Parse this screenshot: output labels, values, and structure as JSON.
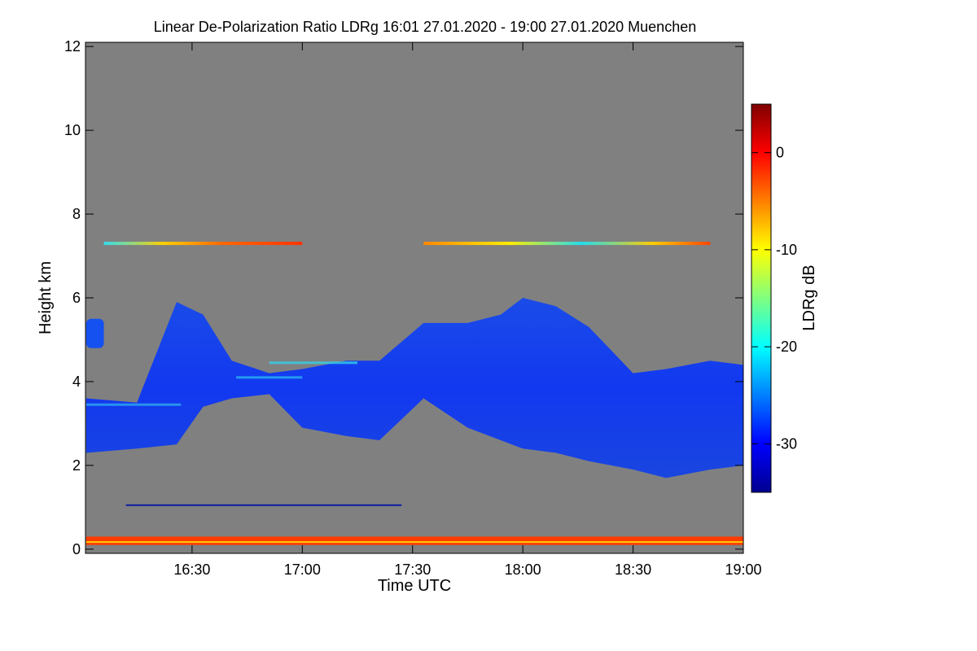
{
  "chart_data": {
    "type": "heatmap",
    "title": "Linear De-Polarization Ratio LDRg   16:01 27.01.2020 - 19:00 27.01.2020 Muenchen",
    "xlabel": "Time UTC",
    "ylabel": "Height km",
    "x_range_hours": [
      16.0167,
      19.0
    ],
    "x_ticks": [
      {
        "label": "16:30",
        "hour": 16.5
      },
      {
        "label": "17:00",
        "hour": 17.0
      },
      {
        "label": "17:30",
        "hour": 17.5
      },
      {
        "label": "18:00",
        "hour": 18.0
      },
      {
        "label": "18:30",
        "hour": 18.5
      },
      {
        "label": "19:00",
        "hour": 19.0
      }
    ],
    "ylim": [
      -0.1,
      12.1
    ],
    "y_ticks": [
      {
        "label": "0",
        "value": 0
      },
      {
        "label": "2",
        "value": 2
      },
      {
        "label": "4",
        "value": 4
      },
      {
        "label": "6",
        "value": 6
      },
      {
        "label": "8",
        "value": 8
      },
      {
        "label": "10",
        "value": 10
      },
      {
        "label": "12",
        "value": 12
      }
    ],
    "colorbar": {
      "label": "LDRg dB",
      "range": [
        -35,
        5
      ],
      "ticks": [
        {
          "label": "0",
          "value": 0
        },
        {
          "label": "-10",
          "value": -10
        },
        {
          "label": "-20",
          "value": -20
        },
        {
          "label": "-30",
          "value": -30
        }
      ]
    },
    "background_color": "#808080",
    "features": [
      {
        "name": "main cloud layer",
        "approx_ldr_db": -30,
        "outline_hours": [
          16.02,
          16.25,
          16.43,
          16.55,
          16.68,
          16.85,
          17.0,
          17.2,
          17.35,
          17.55,
          17.75,
          17.9,
          18.0,
          18.15,
          18.3,
          18.5,
          18.65,
          18.85,
          19.0
        ],
        "top_km": [
          3.6,
          3.5,
          5.9,
          5.6,
          4.5,
          4.2,
          4.3,
          4.5,
          4.5,
          5.4,
          5.4,
          5.6,
          6.0,
          5.8,
          5.3,
          4.2,
          4.3,
          4.5,
          4.4
        ],
        "base_km": [
          2.3,
          2.4,
          2.5,
          3.4,
          3.6,
          3.7,
          2.9,
          2.7,
          2.6,
          3.6,
          2.9,
          2.6,
          2.4,
          2.3,
          2.1,
          1.9,
          1.7,
          1.9,
          2.0
        ]
      },
      {
        "name": "upper patch",
        "hour_range": [
          16.02,
          16.1
        ],
        "height_km": [
          4.8,
          5.5
        ],
        "approx_ldr_db": -28
      },
      {
        "name": "thin cirrus streak",
        "hour_range": [
          16.1,
          17.0
        ],
        "height_km": 7.3,
        "approx_ldr_db": -15
      },
      {
        "name": "thin cirrus streak",
        "hour_range": [
          17.55,
          18.85
        ],
        "height_km": 7.3,
        "approx_ldr_db": -12
      },
      {
        "name": "faint line",
        "hour_range": [
          16.2,
          17.45
        ],
        "height_km": 1.05,
        "approx_ldr_db": -32
      },
      {
        "name": "near-surface signal",
        "hour_range": [
          16.02,
          19.0
        ],
        "height_km": [
          0.1,
          0.3
        ],
        "approx_ldr_db": 0
      }
    ]
  }
}
